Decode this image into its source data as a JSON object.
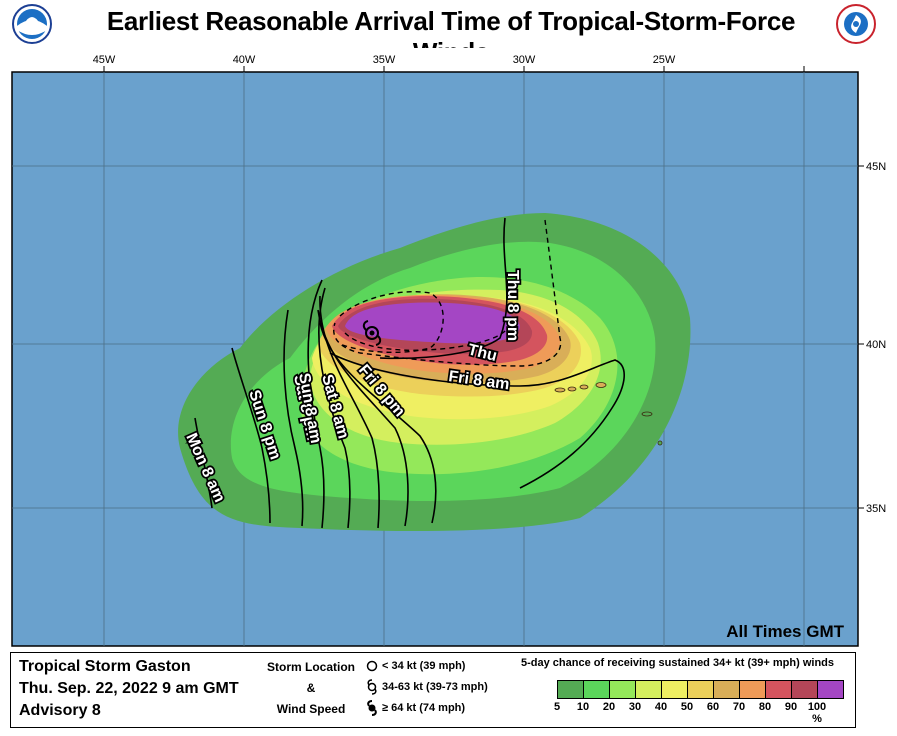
{
  "title": "Earliest Reasonable Arrival Time of Tropical-Storm-Force Winds",
  "logos": {
    "left": "noaa-logo",
    "right": "nws-logo"
  },
  "map": {
    "longitude_labels": [
      "45W",
      "40W",
      "35W",
      "30W",
      "25W"
    ],
    "latitude_labels": [
      "45N",
      "40N",
      "35N"
    ],
    "timezone_note": "All Times GMT",
    "ocean_color": "#6aa1cd",
    "arrival_time_labels": [
      "Thu 8 pm",
      "Thu",
      "Fri 8 am",
      "Fri 8 pm",
      "Sat 8 am",
      "Sat 8 pm",
      "Sun 8 am",
      "Sun 8 pm",
      "Mon 8 am"
    ]
  },
  "legend": {
    "storm_name": "Tropical Storm Gaston",
    "date_time": "Thu. Sep. 22, 2022  9 am GMT",
    "advisory": "Advisory 8",
    "storm_location_label": "Storm Location",
    "ampersand": "&",
    "wind_speed_label": "Wind Speed",
    "symbols": [
      {
        "icon": "low-circle-icon",
        "label": "< 34 kt (39 mph)"
      },
      {
        "icon": "storm-symbol-icon",
        "label": "34-63 kt (39-73 mph)"
      },
      {
        "icon": "hurricane-symbol-icon",
        "label": "≥ 64 kt (74 mph)"
      }
    ],
    "chance_title": "5-day chance of receiving sustained 34+ kt (39+ mph) winds",
    "scale_colors": [
      "#54ab54",
      "#5bd65b",
      "#94e85a",
      "#d4ef5e",
      "#efef62",
      "#ecd05a",
      "#d9ae58",
      "#ef9b58",
      "#d4545e",
      "#b44658",
      "#a446c4"
    ],
    "scale_labels": [
      "5",
      "10",
      "20",
      "30",
      "40",
      "50",
      "60",
      "70",
      "80",
      "90",
      "100 %"
    ]
  }
}
